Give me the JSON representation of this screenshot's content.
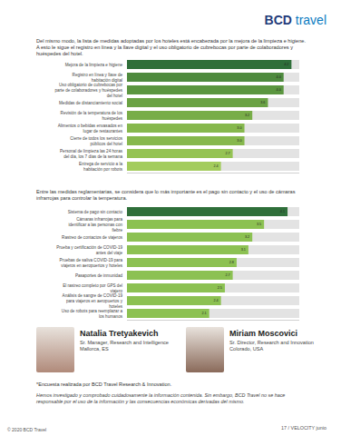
{
  "header": {
    "logo_brand": "BCD",
    "logo_word": "travel"
  },
  "intro": "Del mismo modo, la lista de medidas adoptadas por los hoteles está encabezada por la mejora de la limpieza e higiene. A esto le sigue el registro en línea y la llave digital y el uso obligatorio de cubrebocas por parte de colaboradores y huéspedes del hotel.",
  "middle_text": "Entre las medidas reglamentarias, se considera que lo más importante es el pago sin contacto y el uso de cámaras infrarrojas para controlar la temperatura.",
  "chart_data": [
    {
      "type": "bar",
      "orientation": "horizontal",
      "categories": [
        "Mejora de la limpieza e higiene",
        "Registro en línea y llave de habitación digital",
        "Uso obligatorio de cubrebocas por parte de colaboradores y huéspedes del hotel",
        "Medidas de distanciamiento social",
        "Revisión de la temperatura de los huéspedes",
        "Alimentos o bebidas envasados en lugar de restaurantes",
        "Cierre de todos los servicios públicos del hotel",
        "Personal de limpieza las 24 horas del día, los 7 días de la semana",
        "Entrega de servicio a la habitación por robots"
      ],
      "values": [
        4.2,
        4.0,
        4.0,
        3.6,
        3.2,
        3.0,
        3.0,
        2.7,
        2.4
      ],
      "value_labels": [
        "4.2",
        "4.0",
        "4.0",
        "3.6",
        "3.2",
        "3.0",
        "3.0",
        "2.7",
        "2.4"
      ],
      "colors": [
        "#2f6f3a",
        "#4e8a3e",
        "#5b9640",
        "#6aa244",
        "#78ad48",
        "#86b84d",
        "#86b84d",
        "#95c354",
        "#a3cc5d"
      ],
      "xlim": [
        0,
        4.4
      ],
      "xticks": [],
      "tick_labels": "y",
      "data_labels": true,
      "grid": false
    },
    {
      "type": "bar",
      "orientation": "horizontal",
      "categories": [
        "Sistema de pago sin contacto",
        "Cámaras infrarrojas para identificar a las personas con fiebre",
        "Rastreo de contactos de viajeros",
        "Prueba y certificación de COVID-19 antes del viaje",
        "Pruebas de saliva COVID-19 para viajeros en aeropuertos y hoteles",
        "Pasaportes de inmunidad",
        "El rastreo completo por GPS del viajero",
        "Análisis de sangre de COVID-19 para viajeros en aeropuertos y hoteles",
        "Uso de robots para reemplazar a los humanos"
      ],
      "values": [
        4.1,
        3.5,
        3.2,
        3.1,
        2.8,
        2.7,
        2.5,
        2.4,
        2.1
      ],
      "value_labels": [
        "4.1",
        "3.5",
        "3.2",
        "3.1",
        "2.8",
        "2.7",
        "2.5",
        "2.4",
        "2.1"
      ],
      "colors": [
        "#2f6f3a",
        "#8cc152",
        "#8cc152",
        "#8cc152",
        "#8cc152",
        "#8cc152",
        "#8cc152",
        "#8cc152",
        "#8cc152"
      ],
      "xlim": [
        0,
        4.4
      ],
      "xticks": [],
      "tick_labels": "y",
      "data_labels": true,
      "grid": false
    }
  ],
  "people": [
    {
      "name": "Natalia Tretyakevich",
      "role": "Sr. Manager, Research and Intelligence",
      "place": "Mallorca, ES"
    },
    {
      "name": "Miriam Moscovici",
      "role": "Sr. Director, Research and Innovation",
      "place": "Colorado, USA"
    }
  ],
  "footnote": "*Encuesta realizada por BCD Travel Research & Innovation.",
  "disclaimer": "Hemos investigado y comprobado cuidadosamente la información contenida. Sin embargo, BCD Travel no se hace responsable por el uso de la información y las consecuencias económicas derivadas del mismo.",
  "page_number": "17 / VELOCITY junio",
  "copyright": "© 2020 BCD Travel"
}
